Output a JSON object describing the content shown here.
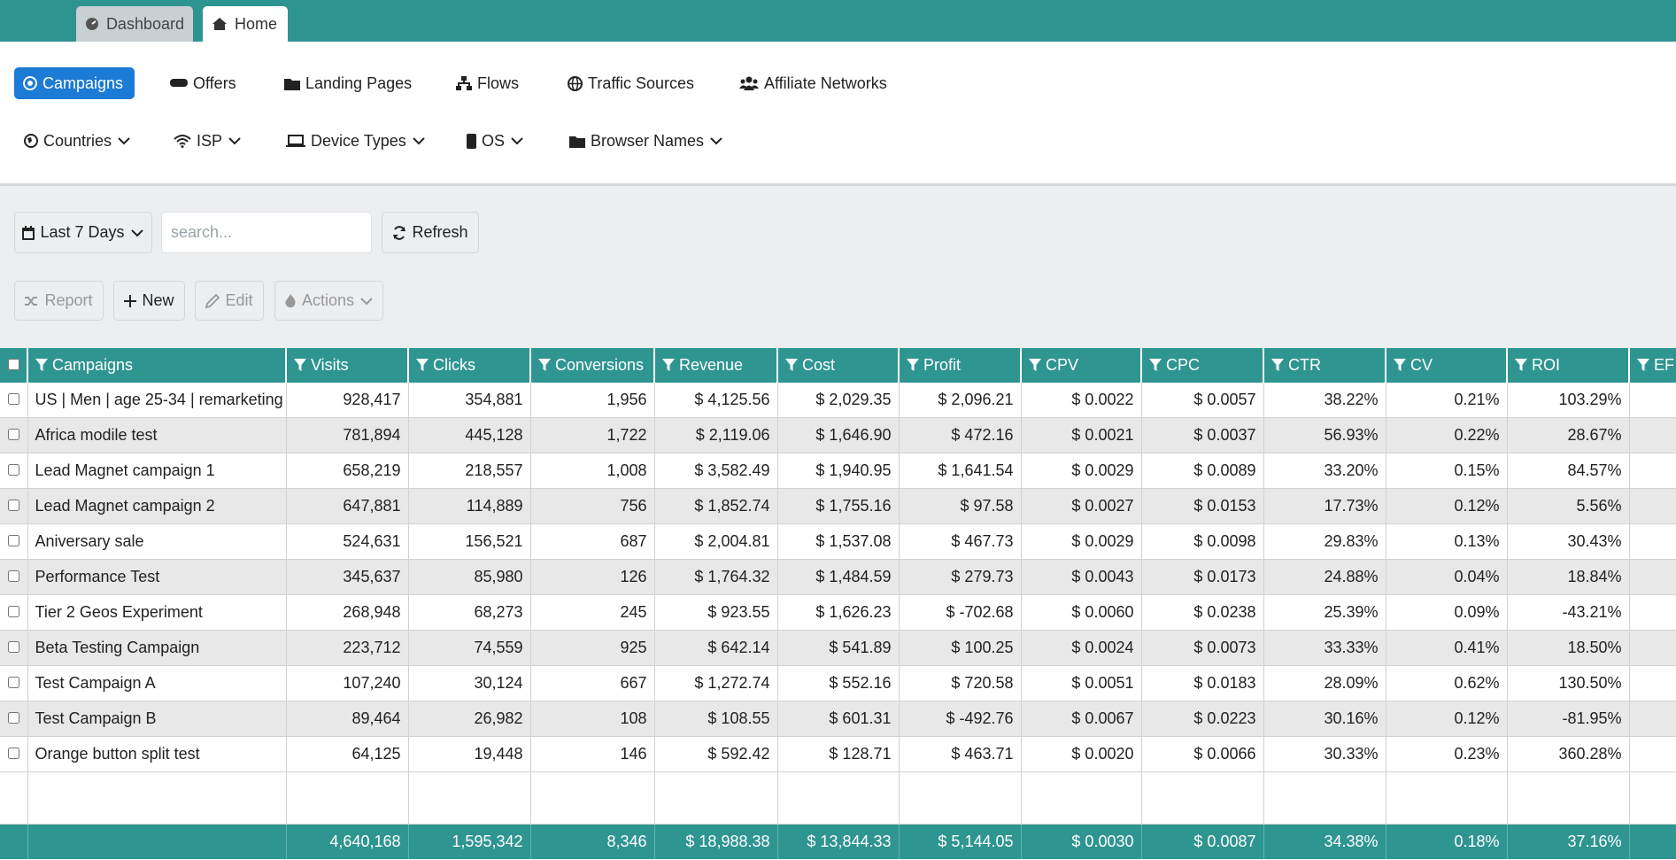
{
  "tabs": [
    "Dashboard",
    "Home"
  ],
  "nav": {
    "primary": [
      "Campaigns",
      "Offers",
      "Landing Pages",
      "Flows",
      "Traffic Sources",
      "Affiliate Networks"
    ],
    "secondary": [
      "Countries",
      "ISP",
      "Device Types",
      "OS",
      "Browser Names"
    ]
  },
  "toolbar": {
    "date_range": "Last 7 Days",
    "search_placeholder": "search...",
    "refresh": "Refresh",
    "report": "Report",
    "new": "New",
    "edit": "Edit",
    "actions": "Actions"
  },
  "table": {
    "columns": [
      "Campaigns",
      "Visits",
      "Clicks",
      "Conversions",
      "Revenue",
      "Cost",
      "Profit",
      "CPV",
      "CPC",
      "CTR",
      "CV",
      "ROI",
      "EF"
    ],
    "rows": [
      [
        "US | Men | age 25-34 | remarketing",
        "928,417",
        "354,881",
        "1,956",
        "$ 4,125.56",
        "$ 2,029.35",
        "$ 2,096.21",
        "$ 0.0022",
        "$ 0.0057",
        "38.22%",
        "0.21%",
        "103.29%"
      ],
      [
        "Africa modile test",
        "781,894",
        "445,128",
        "1,722",
        "$ 2,119.06",
        "$ 1,646.90",
        "$ 472.16",
        "$ 0.0021",
        "$ 0.0037",
        "56.93%",
        "0.22%",
        "28.67%"
      ],
      [
        "Lead Magnet campaign 1",
        "658,219",
        "218,557",
        "1,008",
        "$ 3,582.49",
        "$ 1,940.95",
        "$ 1,641.54",
        "$ 0.0029",
        "$ 0.0089",
        "33.20%",
        "0.15%",
        "84.57%"
      ],
      [
        "Lead Magnet campaign 2",
        "647,881",
        "114,889",
        "756",
        "$ 1,852.74",
        "$ 1,755.16",
        "$ 97.58",
        "$ 0.0027",
        "$ 0.0153",
        "17.73%",
        "0.12%",
        "5.56%"
      ],
      [
        "Aniversary sale",
        "524,631",
        "156,521",
        "687",
        "$ 2,004.81",
        "$ 1,537.08",
        "$ 467.73",
        "$ 0.0029",
        "$ 0.0098",
        "29.83%",
        "0.13%",
        "30.43%"
      ],
      [
        "Performance Test",
        "345,637",
        "85,980",
        "126",
        "$ 1,764.32",
        "$ 1,484.59",
        "$ 279.73",
        "$ 0.0043",
        "$ 0.0173",
        "24.88%",
        "0.04%",
        "18.84%"
      ],
      [
        "Tier 2 Geos Experiment",
        "268,948",
        "68,273",
        "245",
        "$ 923.55",
        "$ 1,626.23",
        "$ -702.68",
        "$ 0.0060",
        "$ 0.0238",
        "25.39%",
        "0.09%",
        "-43.21%"
      ],
      [
        "Beta Testing Campaign",
        "223,712",
        "74,559",
        "925",
        "$ 642.14",
        "$ 541.89",
        "$ 100.25",
        "$ 0.0024",
        "$ 0.0073",
        "33.33%",
        "0.41%",
        "18.50%"
      ],
      [
        "Test Campaign A",
        "107,240",
        "30,124",
        "667",
        "$ 1,272.74",
        "$ 552.16",
        "$ 720.58",
        "$ 0.0051",
        "$ 0.0183",
        "28.09%",
        "0.62%",
        "130.50%"
      ],
      [
        "Test Campaign B",
        "89,464",
        "26,982",
        "108",
        "$ 108.55",
        "$ 601.31",
        "$ -492.76",
        "$ 0.0067",
        "$ 0.0223",
        "30.16%",
        "0.12%",
        "-81.95%"
      ],
      [
        "Orange button split test",
        "64,125",
        "19,448",
        "146",
        "$ 592.42",
        "$ 128.71",
        "$ 463.71",
        "$ 0.0020",
        "$ 0.0066",
        "30.33%",
        "0.23%",
        "360.28%"
      ]
    ],
    "totals": [
      "4,640,168",
      "1,595,342",
      "8,346",
      "$ 18,988.38",
      "$ 13,844.33",
      "$ 5,144.05",
      "$ 0.0030",
      "$ 0.0087",
      "34.38%",
      "0.18%",
      "37.16%"
    ]
  }
}
